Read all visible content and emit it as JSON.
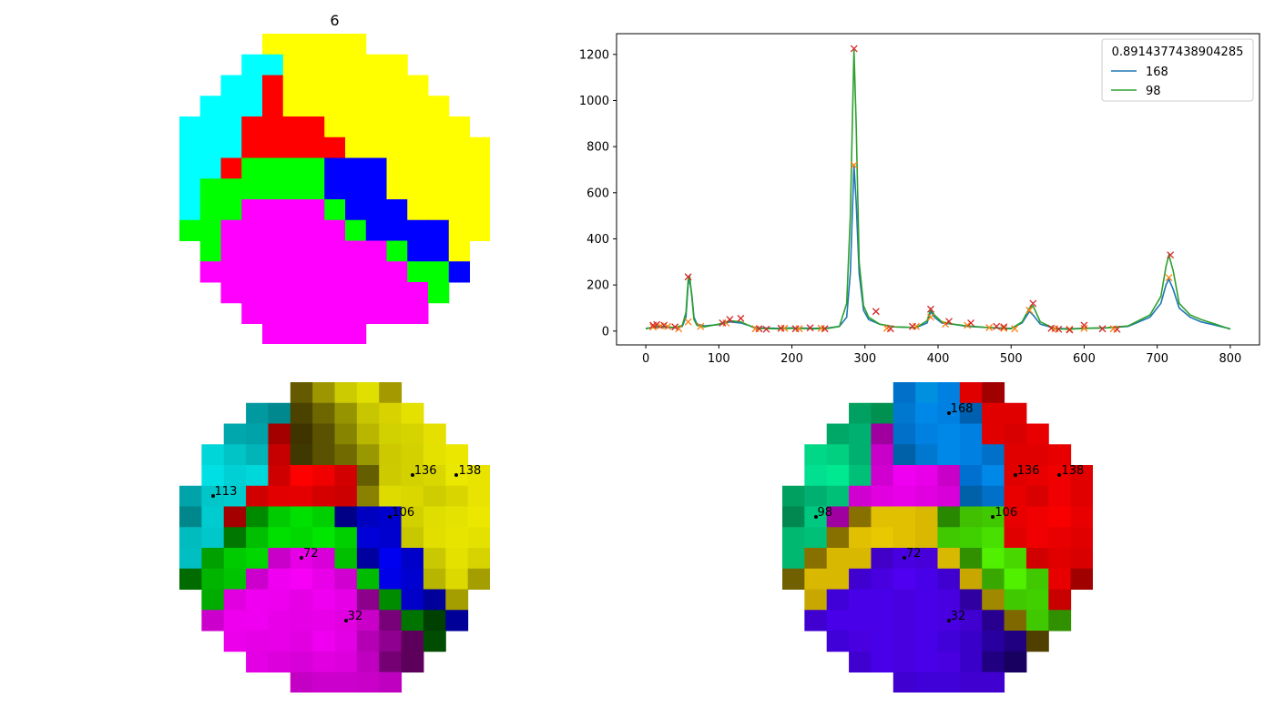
{
  "top_grid": {
    "title": "6",
    "rows": [
      "....YYYYY....",
      "...CCYYYYYY..",
      "..CCRYYYYYYY.",
      ".CCCRYYYYYYYY",
      "CCCRRRRYYYYYYY",
      "CCCRRRRRYYYYYYY",
      "CCRGGGGBBBYYYYY",
      "CGGGGGGBBBYYYYY",
      "CGGMMMMGBBBYYYY",
      "GGMMMMMMGBBBBYY",
      ".GMMMMMMMMGBBY",
      ".MMMMMMMMMMGGB",
      "..MMMMMMMMMMG",
      "...MMMMMMMMM",
      "....MMMMM"
    ],
    "palette": {
      "Y": "#ffff00",
      "C": "#00ffff",
      "R": "#ff0000",
      "G": "#00ff00",
      "B": "#0000ff",
      "M": "#ff00ff"
    }
  },
  "chart_data": {
    "type": "line",
    "title": "",
    "xlabel": "",
    "ylabel": "",
    "xlim": [
      -40,
      840
    ],
    "ylim": [
      -60,
      1290
    ],
    "x_ticks": [
      0,
      100,
      200,
      300,
      400,
      500,
      600,
      700,
      800
    ],
    "y_ticks": [
      0,
      200,
      400,
      600,
      800,
      1000,
      1200
    ],
    "legend_title": "0.8914377438904285",
    "legend_position": "top-right",
    "series": [
      {
        "name": "168",
        "color": "#1f77b4",
        "points": [
          [
            0,
            12
          ],
          [
            20,
            18
          ],
          [
            40,
            14
          ],
          [
            50,
            20
          ],
          [
            55,
            60
          ],
          [
            58,
            200
          ],
          [
            60,
            225
          ],
          [
            63,
            160
          ],
          [
            66,
            60
          ],
          [
            70,
            30
          ],
          [
            80,
            22
          ],
          [
            100,
            28
          ],
          [
            115,
            40
          ],
          [
            130,
            35
          ],
          [
            150,
            15
          ],
          [
            180,
            12
          ],
          [
            200,
            14
          ],
          [
            230,
            12
          ],
          [
            250,
            14
          ],
          [
            265,
            20
          ],
          [
            275,
            60
          ],
          [
            280,
            250
          ],
          [
            285,
            720
          ],
          [
            288,
            560
          ],
          [
            292,
            250
          ],
          [
            298,
            90
          ],
          [
            305,
            50
          ],
          [
            320,
            30
          ],
          [
            340,
            18
          ],
          [
            370,
            15
          ],
          [
            385,
            35
          ],
          [
            390,
            85
          ],
          [
            395,
            60
          ],
          [
            405,
            35
          ],
          [
            420,
            30
          ],
          [
            440,
            20
          ],
          [
            470,
            15
          ],
          [
            500,
            12
          ],
          [
            515,
            35
          ],
          [
            525,
            85
          ],
          [
            530,
            70
          ],
          [
            540,
            30
          ],
          [
            560,
            12
          ],
          [
            580,
            10
          ],
          [
            600,
            12
          ],
          [
            630,
            14
          ],
          [
            660,
            20
          ],
          [
            690,
            60
          ],
          [
            705,
            120
          ],
          [
            712,
            200
          ],
          [
            716,
            225
          ],
          [
            722,
            180
          ],
          [
            730,
            100
          ],
          [
            745,
            60
          ],
          [
            760,
            40
          ],
          [
            780,
            25
          ],
          [
            800,
            10
          ]
        ]
      },
      {
        "name": "98",
        "color": "#2ca02c",
        "points": [
          [
            0,
            10
          ],
          [
            20,
            22
          ],
          [
            40,
            15
          ],
          [
            50,
            25
          ],
          [
            55,
            80
          ],
          [
            58,
            220
          ],
          [
            60,
            240
          ],
          [
            63,
            150
          ],
          [
            66,
            50
          ],
          [
            70,
            25
          ],
          [
            80,
            18
          ],
          [
            100,
            30
          ],
          [
            115,
            45
          ],
          [
            130,
            40
          ],
          [
            150,
            12
          ],
          [
            180,
            10
          ],
          [
            200,
            12
          ],
          [
            230,
            10
          ],
          [
            250,
            12
          ],
          [
            265,
            20
          ],
          [
            275,
            120
          ],
          [
            280,
            500
          ],
          [
            285,
            1220
          ],
          [
            288,
            900
          ],
          [
            292,
            300
          ],
          [
            298,
            110
          ],
          [
            305,
            60
          ],
          [
            320,
            30
          ],
          [
            340,
            18
          ],
          [
            370,
            15
          ],
          [
            385,
            45
          ],
          [
            390,
            95
          ],
          [
            395,
            70
          ],
          [
            405,
            40
          ],
          [
            420,
            30
          ],
          [
            440,
            22
          ],
          [
            470,
            15
          ],
          [
            500,
            10
          ],
          [
            515,
            40
          ],
          [
            525,
            100
          ],
          [
            530,
            110
          ],
          [
            540,
            40
          ],
          [
            560,
            10
          ],
          [
            580,
            8
          ],
          [
            600,
            12
          ],
          [
            630,
            14
          ],
          [
            660,
            22
          ],
          [
            690,
            70
          ],
          [
            705,
            150
          ],
          [
            712,
            280
          ],
          [
            716,
            330
          ],
          [
            722,
            260
          ],
          [
            730,
            120
          ],
          [
            745,
            70
          ],
          [
            760,
            50
          ],
          [
            780,
            30
          ],
          [
            800,
            8
          ]
        ]
      }
    ],
    "markers_orange": [
      [
        10,
        18
      ],
      [
        20,
        22
      ],
      [
        30,
        20
      ],
      [
        45,
        10
      ],
      [
        58,
        40
      ],
      [
        75,
        20
      ],
      [
        110,
        35
      ],
      [
        150,
        10
      ],
      [
        190,
        12
      ],
      [
        210,
        10
      ],
      [
        240,
        12
      ],
      [
        285,
        720
      ],
      [
        330,
        12
      ],
      [
        370,
        20
      ],
      [
        390,
        60
      ],
      [
        410,
        30
      ],
      [
        440,
        25
      ],
      [
        470,
        15
      ],
      [
        490,
        12
      ],
      [
        505,
        10
      ],
      [
        525,
        90
      ],
      [
        560,
        10
      ],
      [
        580,
        8
      ],
      [
        600,
        12
      ],
      [
        640,
        10
      ],
      [
        716,
        232
      ]
    ],
    "markers_red": [
      [
        10,
        25
      ],
      [
        15,
        28
      ],
      [
        25,
        25
      ],
      [
        40,
        18
      ],
      [
        58,
        235
      ],
      [
        105,
        35
      ],
      [
        115,
        50
      ],
      [
        130,
        55
      ],
      [
        155,
        10
      ],
      [
        165,
        8
      ],
      [
        185,
        12
      ],
      [
        205,
        10
      ],
      [
        225,
        14
      ],
      [
        245,
        10
      ],
      [
        285,
        1225
      ],
      [
        315,
        85
      ],
      [
        335,
        10
      ],
      [
        365,
        20
      ],
      [
        390,
        95
      ],
      [
        415,
        42
      ],
      [
        445,
        35
      ],
      [
        480,
        20
      ],
      [
        490,
        18
      ],
      [
        530,
        120
      ],
      [
        555,
        12
      ],
      [
        565,
        8
      ],
      [
        580,
        5
      ],
      [
        600,
        25
      ],
      [
        625,
        10
      ],
      [
        645,
        8
      ],
      [
        718,
        330
      ]
    ],
    "marker_colors": {
      "orange": "#ff7f0e",
      "red": "#d62728"
    }
  },
  "bottom_left_grid": {
    "rows": [
      [
        "",
        "",
        "",
        "",
        "",
        "#645b00",
        "#9d9600",
        "#ccca00",
        "#e1df00",
        "#a59900",
        "",
        "",
        "",
        ""
      ],
      [
        "",
        "",
        "",
        "#0099a0",
        "#00888f",
        "#4c4200",
        "#6e6700",
        "#969400",
        "#c7c600",
        "#d8d200",
        "#e4e000",
        "",
        "",
        ""
      ],
      [
        "",
        "",
        "#00a8ae",
        "#00a2a9",
        "#a40000",
        "#3f3400",
        "#5a5200",
        "#878500",
        "#b9b600",
        "#d1d000",
        "#d6d300",
        "#e6e000",
        "",
        ""
      ],
      [
        "",
        "#00d6d8",
        "#00c4c6",
        "#00b4b7",
        "#c60000",
        "#3f3800",
        "#5a5200",
        "#706a00",
        "#9a9800",
        "#ccc900",
        "#d4d100",
        "#e4e100",
        "#ece700",
        ""
      ],
      [
        "",
        "#00e0e4",
        "#00d0d4",
        "#00d7da",
        "#cf0000",
        "#ff0000",
        "#f00000",
        "#d20000",
        "#645e00",
        "#cdcb00",
        "#d4d100",
        "#d9d600",
        "#eae700",
        "#e8e400"
      ],
      [
        "#00a3a9",
        "#00c6c9",
        "#00cbce",
        "#d10000",
        "#e20000",
        "#e40000",
        "#d40000",
        "#cc0000",
        "#8a8100",
        "#dedb00",
        "#d9d600",
        "#cfcd00",
        "#d8d500",
        "#e8e300"
      ],
      [
        "#00878b",
        "#00cbce",
        "#a40000",
        "#008a00",
        "#00ca00",
        "#00e000",
        "#00d000",
        "#000086",
        "#0000c0",
        "#0000cc",
        "#d3d000",
        "#e0de00",
        "#e4e200",
        "#ece700"
      ],
      [
        "#00bcbf",
        "#00c8ca",
        "#007700",
        "#00bf00",
        "#00e000",
        "#00d800",
        "#00e600",
        "#00d000",
        "#0000d8",
        "#0000ce",
        "#c9c700",
        "#e1de00",
        "#e7e500",
        "#e4e000"
      ],
      [
        "#00bfc2",
        "#00a000",
        "#00ca00",
        "#00d600",
        "#c800c8",
        "#e600e6",
        "#d800d8",
        "#00c000",
        "#0000a0",
        "#0000f0",
        "#0000c8",
        "#cac800",
        "#e4e100",
        "#d6d300"
      ],
      [
        "#006c00",
        "#00b400",
        "#00c400",
        "#cc00cc",
        "#f000f0",
        "#f600f6",
        "#e800e8",
        "#d000d0",
        "#00bc00",
        "#0000e8",
        "#0000d0",
        "#b8b500",
        "#dcd900",
        "#a49e00"
      ],
      [
        "",
        "#00ac00",
        "#e000e0",
        "#f000f0",
        "#ee00ee",
        "#e600e6",
        "#f000f0",
        "#e600e6",
        "#8c008c",
        "#008c00",
        "#0000c8",
        "#00009a",
        "#a49e00",
        ""
      ],
      [
        "",
        "#cc00cc",
        "#ee00ee",
        "#f000f0",
        "#e800e8",
        "#e600e6",
        "#e800e8",
        "#e000e0",
        "#c800c8",
        "#780078",
        "#007400",
        "#004000",
        "#000098",
        ""
      ],
      [
        "",
        "",
        "#ec00ec",
        "#e600e6",
        "#e800e8",
        "#e200e2",
        "#f000f0",
        "#e400e4",
        "#b400b4",
        "#900090",
        "#5c005c",
        "#004c00",
        "",
        ""
      ],
      [
        "",
        "",
        "",
        "#e400e4",
        "#dc00dc",
        "#d800d8",
        "#e000e0",
        "#dc00dc",
        "#c000c0",
        "#740074",
        "#5c005c",
        "",
        "",
        ""
      ],
      [
        "",
        "",
        "",
        "",
        "",
        "#c400c4",
        "#cc00cc",
        "#cc00cc",
        "#c800c8",
        "#c000c0",
        "",
        "",
        "",
        ""
      ]
    ],
    "pins": [
      {
        "label": "113",
        "col": 1.5,
        "row": 5.5
      },
      {
        "label": "136",
        "col": 10.5,
        "row": 4.5
      },
      {
        "label": "138",
        "col": 12.5,
        "row": 4.5
      },
      {
        "label": "106",
        "col": 9.5,
        "row": 6.5
      },
      {
        "label": "72",
        "col": 5.5,
        "row": 8.5
      },
      {
        "label": "32",
        "col": 7.5,
        "row": 11.5
      }
    ]
  },
  "bottom_right_grid": {
    "rows": [
      [
        "",
        "",
        "",
        "",
        "",
        "#0070c8",
        "#0090e0",
        "#0080e0",
        "#e00000",
        "#a00000",
        "",
        "",
        "",
        ""
      ],
      [
        "",
        "",
        "",
        "#00a060",
        "#009050",
        "#0078d0",
        "#0088e8",
        "#0080e0",
        "#0060b0",
        "#e00000",
        "#e00000",
        "",
        "",
        ""
      ],
      [
        "",
        "",
        "#00a868",
        "#00b070",
        "#a000a0",
        "#0070c8",
        "#0080e0",
        "#0088e8",
        "#0080e0",
        "#e00000",
        "#d80000",
        "#e80000",
        "",
        ""
      ],
      [
        "",
        "#00d888",
        "#00d080",
        "#00b070",
        "#c800c8",
        "#0060a8",
        "#0078d0",
        "#0088e8",
        "#0080e0",
        "#0070c8",
        "#e00000",
        "#e00000",
        "#e80000",
        ""
      ],
      [
        "",
        "#00e090",
        "#00e890",
        "#00c078",
        "#d000d0",
        "#f000f0",
        "#e800e8",
        "#c800c8",
        "#0070d0",
        "#0088e8",
        "#e00000",
        "#e80000",
        "#f00000",
        "#e00000"
      ],
      [
        "#00a060",
        "#00b070",
        "#00c078",
        "#d000d0",
        "#e000e0",
        "#e800e8",
        "#e000e0",
        "#d800d8",
        "#0060a8",
        "#0070c8",
        "#e80000",
        "#d80000",
        "#f00000",
        "#e00000"
      ],
      [
        "#008850",
        "#00c880",
        "#a000a0",
        "#887000",
        "#e0c000",
        "#e0c000",
        "#d8b800",
        "#288800",
        "#40c000",
        "#40c800",
        "#e80000",
        "#f00000",
        "#f80000",
        "#e80000"
      ],
      [
        "#00b870",
        "#00c078",
        "#887000",
        "#e0c000",
        "#e8c800",
        "#e0c000",
        "#d8b800",
        "#40c800",
        "#40d000",
        "#48e000",
        "#e00000",
        "#f00000",
        "#e80000",
        "#e00000"
      ],
      [
        "#00b870",
        "#887000",
        "#d8b800",
        "#d8b800",
        "#4000c8",
        "#4800e0",
        "#4800d8",
        "#d8b800",
        "#309000",
        "#50f000",
        "#48d800",
        "#d00000",
        "#e00000",
        "#d80000"
      ],
      [
        "#706000",
        "#d8b800",
        "#d8b800",
        "#4000d0",
        "#4800e0",
        "#5000f0",
        "#4800e8",
        "#4000d0",
        "#c8a800",
        "#38a800",
        "#50f000",
        "#40c800",
        "#e80000",
        "#a00000"
      ],
      [
        "",
        "#c8a800",
        "#4000d8",
        "#4800e8",
        "#4800e8",
        "#4800e0",
        "#4800e8",
        "#4800e0",
        "#3000a0",
        "#a08800",
        "#40c800",
        "#40d000",
        "#c80000",
        ""
      ],
      [
        "",
        "#4000d0",
        "#4800e8",
        "#4800e8",
        "#4800e8",
        "#4800e0",
        "#4800e8",
        "#4800e0",
        "#4000d0",
        "#280090",
        "#806800",
        "#40c800",
        "#309000",
        ""
      ],
      [
        "",
        "",
        "#4000d8",
        "#4800e0",
        "#4800e8",
        "#4800e0",
        "#4800e8",
        "#4000d8",
        "#3800c8",
        "#2800a0",
        "#200080",
        "#504000",
        "",
        ""
      ],
      [
        "",
        "",
        "",
        "#4000d0",
        "#4800e8",
        "#4800e0",
        "#4800e8",
        "#4800e0",
        "#3800c8",
        "#200080",
        "#180060",
        "",
        "",
        ""
      ],
      [
        "",
        "",
        "",
        "",
        "",
        "#4000d0",
        "#4000d8",
        "#4000d8",
        "#4000d0",
        "#4000d0",
        "",
        "",
        "",
        ""
      ]
    ],
    "pins": [
      {
        "label": "168",
        "col": 7.5,
        "row": 1.5
      },
      {
        "label": "136",
        "col": 10.5,
        "row": 4.5
      },
      {
        "label": "138",
        "col": 12.5,
        "row": 4.5
      },
      {
        "label": "98",
        "col": 1.5,
        "row": 6.5
      },
      {
        "label": "106",
        "col": 9.5,
        "row": 6.5
      },
      {
        "label": "72",
        "col": 5.5,
        "row": 8.5
      },
      {
        "label": "32",
        "col": 7.5,
        "row": 11.5
      }
    ]
  }
}
